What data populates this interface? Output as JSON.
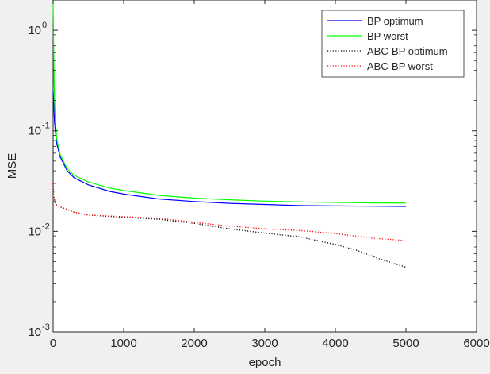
{
  "chart_data": {
    "type": "line",
    "xlabel": "epoch",
    "ylabel": "MSE",
    "xlim": [
      0,
      6000
    ],
    "ylim": [
      0.001,
      2
    ],
    "yscale": "log",
    "xticks": [
      0,
      1000,
      2000,
      3000,
      4000,
      5000,
      6000
    ],
    "xtick_labels": [
      "0",
      "1000",
      "2000",
      "3000",
      "4000",
      "5000",
      "6000"
    ],
    "yticks": [
      0.001,
      0.01,
      0.1,
      1
    ],
    "ytick_labels": [
      {
        "base": "10",
        "exp": "-3"
      },
      {
        "base": "10",
        "exp": "-2"
      },
      {
        "base": "10",
        "exp": "-1"
      },
      {
        "base": "10",
        "exp": "0"
      }
    ],
    "grid": false,
    "legend_position": "top-right",
    "series": [
      {
        "name": "BP optimum",
        "color": "#0000ff",
        "line_style": "solid",
        "x": [
          0,
          20,
          50,
          100,
          200,
          300,
          500,
          800,
          1000,
          1500,
          2000,
          2500,
          3000,
          3500,
          4000,
          4500,
          5000
        ],
        "y": [
          0.25,
          0.12,
          0.075,
          0.055,
          0.04,
          0.034,
          0.029,
          0.025,
          0.0235,
          0.021,
          0.0198,
          0.019,
          0.0185,
          0.018,
          0.0179,
          0.0178,
          0.0177
        ]
      },
      {
        "name": "BP worst",
        "color": "#00ff00",
        "line_style": "solid",
        "x": [
          0,
          5,
          15,
          30,
          50,
          100,
          200,
          300,
          500,
          800,
          1000,
          1500,
          2000,
          2500,
          3000,
          3500,
          4000,
          4500,
          5000
        ],
        "y": [
          2.0,
          1.0,
          0.3,
          0.13,
          0.085,
          0.058,
          0.042,
          0.036,
          0.031,
          0.027,
          0.0255,
          0.0228,
          0.0214,
          0.0206,
          0.02,
          0.0196,
          0.0194,
          0.0192,
          0.0191
        ]
      },
      {
        "name": "ABC-BP optimum",
        "color": "#000000",
        "line_style": "dotted",
        "x": [
          0,
          10,
          30,
          60,
          100,
          300,
          500,
          1000,
          1500,
          2000,
          2500,
          3000,
          3500,
          4000,
          4300,
          4600,
          5000
        ],
        "y": [
          0.03,
          0.022,
          0.019,
          0.018,
          0.0175,
          0.0155,
          0.0145,
          0.0138,
          0.0132,
          0.012,
          0.0106,
          0.0096,
          0.0088,
          0.0074,
          0.0065,
          0.0054,
          0.0044
        ]
      },
      {
        "name": "ABC-BP worst",
        "color": "#ff0000",
        "line_style": "dotted",
        "x": [
          0,
          10,
          30,
          60,
          100,
          300,
          500,
          1000,
          1500,
          2000,
          2500,
          3000,
          3500,
          4000,
          4500,
          5000
        ],
        "y": [
          0.03,
          0.022,
          0.019,
          0.018,
          0.0175,
          0.0155,
          0.0145,
          0.014,
          0.0135,
          0.0123,
          0.0113,
          0.0106,
          0.0102,
          0.0095,
          0.0086,
          0.0081
        ]
      }
    ]
  }
}
